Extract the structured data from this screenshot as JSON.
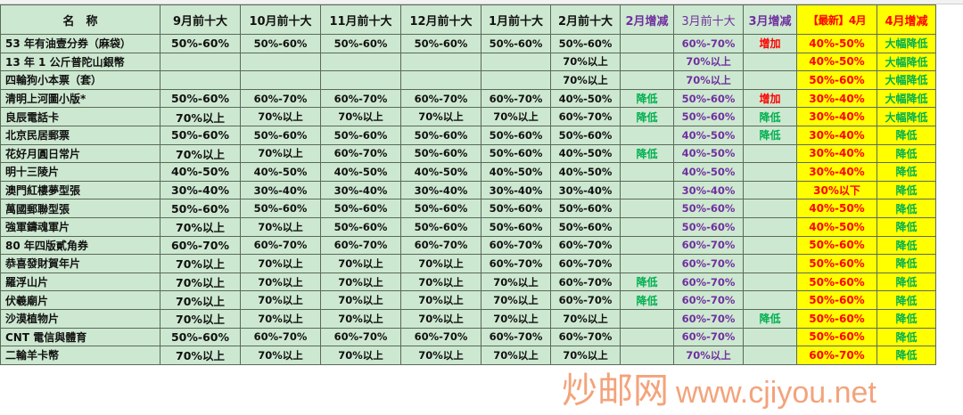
{
  "headers": [
    "名　称",
    "9月前十大",
    "10月前十大",
    "11月前十大",
    "12月前十大",
    "1月前十大",
    "2月前十大",
    "2月增减",
    "3月前十大",
    "3月增减",
    "【最新】4月",
    "4月增减"
  ],
  "colors": {
    "cell_bg": "#cde8d0",
    "highlight": "#ffff00",
    "purple": "#7030a0",
    "green": "#00b050",
    "red": "#ff0000"
  },
  "rows": [
    [
      "53 年有油壹分券（麻袋）",
      "50%-60%",
      "50%-60%",
      "50%-60%",
      "50%-60%",
      "50%-60%",
      "50%-60%",
      "",
      "60%-70%",
      "增加",
      "40%-50%",
      "大幅降低"
    ],
    [
      "13 年 1 公斤普陀山銀幣",
      "",
      "",
      "",
      "",
      "",
      "70%以上",
      "",
      "70%以上",
      "",
      "40%-50%",
      "大幅降低"
    ],
    [
      "四輪狗小本票（套）",
      "",
      "",
      "",
      "",
      "",
      "70%以上",
      "",
      "70%以上",
      "",
      "50%-60%",
      "大幅降低"
    ],
    [
      "清明上河圖小版*",
      "50%-60%",
      "60%-70%",
      "60%-70%",
      "60%-70%",
      "60%-70%",
      "40%-50%",
      "降低",
      "50%-60%",
      "增加",
      "30%-40%",
      "大幅降低"
    ],
    [
      "良辰電話卡",
      "70%以上",
      "70%以上",
      "70%以上",
      "70%以上",
      "70%以上",
      "60%-70%",
      "降低",
      "50%-60%",
      "降低",
      "30%-40%",
      "大幅降低"
    ],
    [
      "北京民居郵票",
      "50%-60%",
      "50%-60%",
      "50%-60%",
      "50%-60%",
      "50%-60%",
      "50%-60%",
      "",
      "40%-50%",
      "降低",
      "30%-40%",
      "降低"
    ],
    [
      "花好月圓日常片",
      "70%以上",
      "70%以上",
      "60%-70%",
      "50%-60%",
      "50%-60%",
      "40%-50%",
      "降低",
      "40%-50%",
      "",
      "30%-40%",
      "降低"
    ],
    [
      "明十三陵片",
      "40%-50%",
      "40%-50%",
      "40%-50%",
      "40%-50%",
      "40%-50%",
      "40%-50%",
      "",
      "40%-50%",
      "",
      "30%-40%",
      "降低"
    ],
    [
      "澳門紅樓夢型張",
      "30%-40%",
      "30%-40%",
      "30%-40%",
      "30%-40%",
      "30%-40%",
      "30%-40%",
      "",
      "30%-40%",
      "",
      "30%以下",
      "降低"
    ],
    [
      "萬國郵聯型張",
      "50%-60%",
      "50%-60%",
      "50%-60%",
      "50%-60%",
      "50%-60%",
      "50%-60%",
      "",
      "50%-60%",
      "",
      "40%-50%",
      "降低"
    ],
    [
      "強軍鑄魂軍片",
      "70%以上",
      "70%以上",
      "50%-60%",
      "50%-60%",
      "50%-60%",
      "50%-60%",
      "",
      "50%-60%",
      "",
      "40%-50%",
      "降低"
    ],
    [
      "80 年四版貳角券",
      "60%-70%",
      "60%-70%",
      "60%-70%",
      "60%-70%",
      "60%-70%",
      "60%-70%",
      "",
      "60%-70%",
      "",
      "50%-60%",
      "降低"
    ],
    [
      "恭喜發財賀年片",
      "70%以上",
      "70%以上",
      "70%以上",
      "70%以上",
      "60%-70%",
      "60%-70%",
      "",
      "60%-70%",
      "",
      "50%-60%",
      "降低"
    ],
    [
      "羅浮山片",
      "70%以上",
      "70%以上",
      "70%以上",
      "70%以上",
      "70%以上",
      "60%-70%",
      "降低",
      "60%-70%",
      "",
      "50%-60%",
      "降低"
    ],
    [
      "伏羲廟片",
      "70%以上",
      "70%以上",
      "70%以上",
      "70%以上",
      "70%以上",
      "60%-70%",
      "降低",
      "60%-70%",
      "",
      "50%-60%",
      "降低"
    ],
    [
      "沙漠植物片",
      "70%以上",
      "70%以上",
      "70%以上",
      "70%以上",
      "70%以上",
      "70%以上",
      "",
      "60%-70%",
      "降低",
      "50%-60%",
      "降低"
    ],
    [
      "CNT 電信與體育",
      "50%-60%",
      "60%-70%",
      "60%-70%",
      "60%-70%",
      "60%-70%",
      "60%-70%",
      "",
      "60%-70%",
      "",
      "50%-60%",
      "降低"
    ],
    [
      "二輪羊卡幣",
      "70%以上",
      "70%以上",
      "70%以上",
      "70%以上",
      "70%以上",
      "70%以上",
      "",
      "70%以上",
      "",
      "60%-70%",
      "降低"
    ]
  ],
  "watermark": {
    "text": "炒邮网",
    "url": "www.cjiyou.net"
  }
}
